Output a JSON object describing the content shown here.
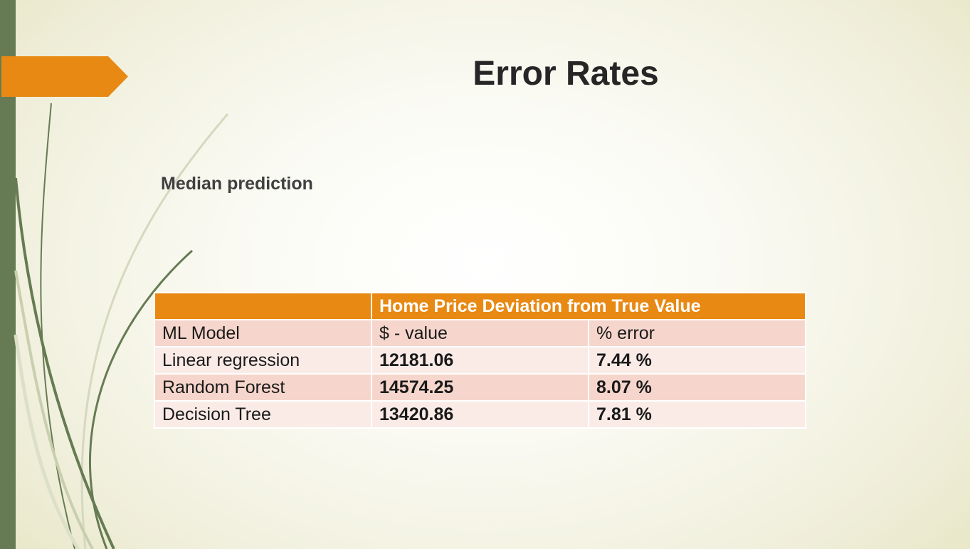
{
  "slide": {
    "title": "Error Rates",
    "subtitle": "Median prediction"
  },
  "table": {
    "group_header": "Home Price Deviation from True Value",
    "columns": [
      "ML Model",
      "$ - value",
      "% error"
    ],
    "rows": [
      {
        "model": "Linear regression",
        "value": "12181.06",
        "error": "7.44 %"
      },
      {
        "model": "Random Forest",
        "value": "14574.25",
        "error": "8.07 %"
      },
      {
        "model": "Decision Tree",
        "value": "13420.86",
        "error": "7.81 %"
      }
    ]
  },
  "colors": {
    "accent": "#e88914",
    "sidebar": "#667b53",
    "row_dark": "#f6d6cc",
    "row_light": "#faebe7"
  }
}
